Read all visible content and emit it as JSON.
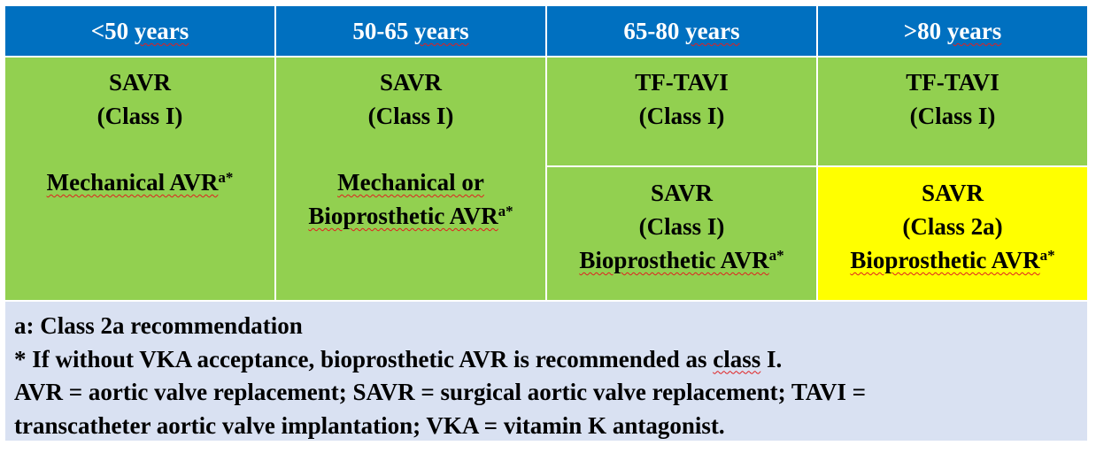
{
  "headers": [
    "<50",
    "50-65",
    "65-80",
    ">80"
  ],
  "header_unit": "years",
  "col1": {
    "line1": "SAVR",
    "line2": "(Class I)",
    "line3": "Mechanical AVR",
    "sup": "a*"
  },
  "col2": {
    "line1": "SAVR",
    "line2": "(Class I)",
    "line3": "Mechanical or",
    "line4": "Bioprosthetic AVR",
    "sup": "a*"
  },
  "col3_top": {
    "line1": "TF-TAVI",
    "line2": "(Class I)"
  },
  "col4_top": {
    "line1": "TF-TAVI",
    "line2": "(Class I)"
  },
  "col3_bottom": {
    "line1": "SAVR",
    "line2": "(Class I)",
    "line3": "Bioprosthetic AVR",
    "sup": "a*"
  },
  "col4_bottom": {
    "line1": "SAVR",
    "line2": "(Class 2a)",
    "line3": "Bioprosthetic AVR",
    "sup": "a*"
  },
  "footer": {
    "line1": "a: Class 2a recommendation",
    "line2_a": "* If without VKA acceptance, bioprosthetic AVR is recommended as ",
    "line2_b": "class",
    "line2_c": " I.",
    "line3": "AVR = aortic valve replacement; SAVR = surgical aortic valve replacement; TAVI =",
    "line4": "transcatheter aortic valve implantation; VKA = vitamin K antagonist."
  },
  "colors": {
    "header_bg": "#0070c0",
    "cell_green": "#92d050",
    "cell_yellow": "#ffff00",
    "footer_bg": "#d9e1f2"
  }
}
